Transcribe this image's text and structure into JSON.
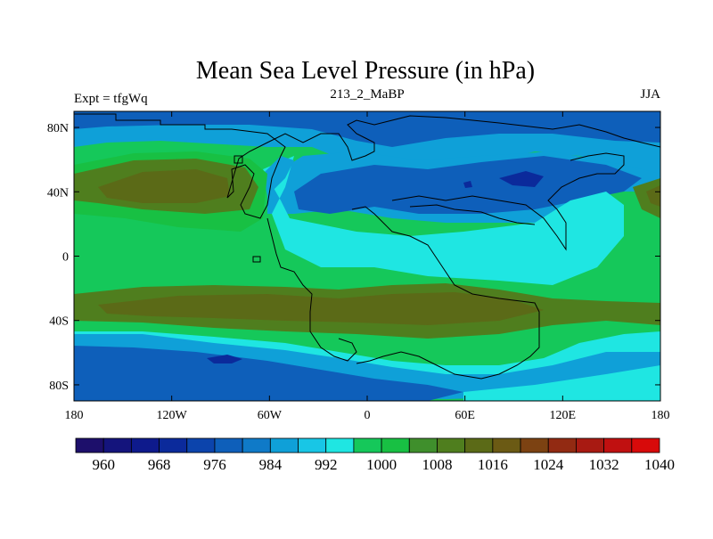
{
  "chart_data": {
    "type": "heatmap",
    "title": "Mean Sea Level Pressure (in hPa)",
    "subtitle_left": "Expt = tfgWq",
    "subtitle_center": "213_2_MaBP",
    "subtitle_right": "JJA",
    "x_ticks": [
      "180",
      "120W",
      "60W",
      "0",
      "60E",
      "120E",
      "180"
    ],
    "y_ticks": [
      "80N",
      "40N",
      "0",
      "40S",
      "80S"
    ],
    "xlim": [
      -180,
      180
    ],
    "ylim": [
      -90,
      90
    ],
    "colorbar_labels": [
      "960",
      "968",
      "976",
      "984",
      "992",
      "1000",
      "1008",
      "1016",
      "1024",
      "1032",
      "1040"
    ],
    "colorbar_colors": [
      "#1d0f6b",
      "#14147c",
      "#0e1a8c",
      "#0b2a9b",
      "#0c44ac",
      "#0e5fba",
      "#0f7ac8",
      "#0fa0d8",
      "#18c6e6",
      "#1fe6e2",
      "#15c85a",
      "#18c043",
      "#3f8f2c",
      "#4f7e1e",
      "#5b6a17",
      "#6b5a14",
      "#7c4212",
      "#922a12",
      "#a81a12",
      "#c01010",
      "#d80a0a"
    ]
  }
}
